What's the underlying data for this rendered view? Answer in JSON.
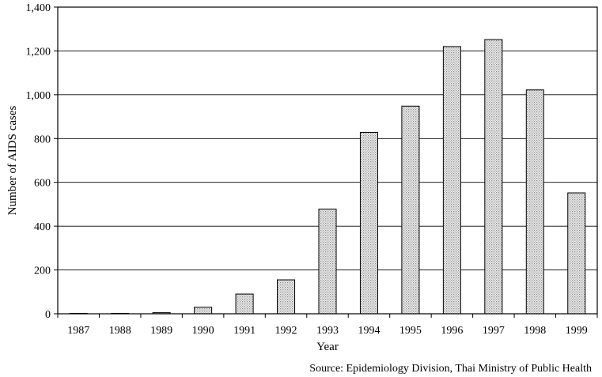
{
  "chart_data": {
    "type": "bar",
    "title": "",
    "xlabel": "Year",
    "ylabel": "Number of AIDS cases",
    "categories": [
      "1987",
      "1988",
      "1989",
      "1990",
      "1991",
      "1992",
      "1993",
      "1994",
      "1995",
      "1996",
      "1997",
      "1998",
      "1999"
    ],
    "values": [
      2,
      2,
      5,
      30,
      90,
      155,
      478,
      828,
      948,
      1220,
      1252,
      1022,
      552
    ],
    "ylim": [
      0,
      1400
    ],
    "yticks": [
      0,
      200,
      400,
      600,
      800,
      1000,
      1200,
      1400
    ],
    "ytick_labels": [
      "0",
      "200",
      "400",
      "600",
      "800",
      "1,000",
      "1,200",
      "1,400"
    ],
    "grid": true,
    "legend": "none",
    "source": "Source: Epidemiology Division, Thai Ministry of Public Health",
    "colors": {
      "bar_stroke": "#000000",
      "bar_pattern": "#bdbdbd",
      "grid": "#000000"
    }
  }
}
